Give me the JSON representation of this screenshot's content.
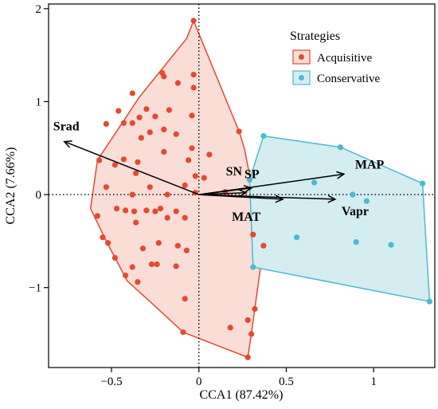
{
  "chart_data": {
    "type": "scatter",
    "xlabel": "CCA1 (87.42%)",
    "ylabel": "CCA2 (7.66%)",
    "xlim": [
      -0.86,
      1.35
    ],
    "ylim": [
      -1.86,
      2.05
    ],
    "x_ticks": [
      -0.5,
      0,
      0.5,
      1
    ],
    "x_tick_labels": [
      "−0.5",
      "0",
      "0.5",
      "1"
    ],
    "y_ticks": [
      -1,
      0,
      1,
      2
    ],
    "y_tick_labels": [
      "−1",
      "0",
      "1",
      "2"
    ],
    "grid": false,
    "reference_lines": {
      "x": 0,
      "y": 0,
      "style": "dotted"
    },
    "legend": {
      "title": "Strategies",
      "position": "top-right",
      "entries": [
        {
          "name": "Acquisitive",
          "color": "#e24a33"
        },
        {
          "name": "Conservative",
          "color": "#4fb8d2"
        }
      ]
    },
    "series": [
      {
        "name": "Acquisitive",
        "color": "#e24a33",
        "fill": "#f9ddd6",
        "hull": [
          [
            -0.03,
            1.87
          ],
          [
            0.23,
            0.68
          ],
          [
            0.26,
            0.5
          ],
          [
            0.37,
            -0.55
          ],
          [
            0.3,
            -1.5
          ],
          [
            0.28,
            -1.75
          ],
          [
            -0.09,
            -1.48
          ],
          [
            -0.28,
            -1.15
          ],
          [
            -0.41,
            -0.93
          ],
          [
            -0.53,
            -0.5
          ],
          [
            -0.62,
            -0.15
          ],
          [
            -0.58,
            0.37
          ],
          [
            -0.34,
            1.05
          ],
          [
            -0.07,
            1.68
          ]
        ],
        "points": [
          [
            -0.03,
            1.87
          ],
          [
            -0.21,
            1.31
          ],
          [
            -0.2,
            1.27
          ],
          [
            -0.12,
            1.2
          ],
          [
            -0.03,
            1.29
          ],
          [
            -0.03,
            1.15
          ],
          [
            -0.38,
            1.09
          ],
          [
            -0.3,
            0.92
          ],
          [
            -0.17,
            0.91
          ],
          [
            -0.46,
            0.9
          ],
          [
            -0.34,
            0.83
          ],
          [
            -0.25,
            0.84
          ],
          [
            -0.04,
            0.85
          ],
          [
            -0.38,
            0.77
          ],
          [
            -0.43,
            0.77
          ],
          [
            -0.53,
            0.76
          ],
          [
            -0.2,
            0.7
          ],
          [
            -0.28,
            0.67
          ],
          [
            -0.13,
            0.65
          ],
          [
            -0.33,
            0.61
          ],
          [
            -0.04,
            0.5
          ],
          [
            -0.06,
            0.37
          ],
          [
            -0.43,
            0.38
          ],
          [
            -0.57,
            0.37
          ],
          [
            -0.35,
            0.35
          ],
          [
            0.06,
            0.43
          ],
          [
            -0.2,
            0.46
          ],
          [
            0.23,
            0.68
          ],
          [
            -0.48,
            0.32
          ],
          [
            -0.36,
            0.23
          ],
          [
            -0.02,
            0.2
          ],
          [
            0.03,
            0.18
          ],
          [
            -0.08,
            0.1
          ],
          [
            -0.53,
            0.08
          ],
          [
            -0.28,
            0.08
          ],
          [
            -0.38,
            0.0
          ],
          [
            -0.18,
            0.0
          ],
          [
            -0.47,
            -0.15
          ],
          [
            -0.58,
            -0.23
          ],
          [
            -0.37,
            -0.18
          ],
          [
            -0.42,
            -0.17
          ],
          [
            -0.25,
            -0.18
          ],
          [
            -0.22,
            -0.15
          ],
          [
            -0.13,
            -0.18
          ],
          [
            -0.3,
            -0.17
          ],
          [
            -0.18,
            -0.25
          ],
          [
            -0.08,
            -0.25
          ],
          [
            -0.36,
            -0.3
          ],
          [
            -0.55,
            -0.46
          ],
          [
            -0.52,
            -0.52
          ],
          [
            -0.23,
            -0.52
          ],
          [
            -0.32,
            -0.58
          ],
          [
            -0.48,
            -0.68
          ],
          [
            -0.12,
            -0.55
          ],
          [
            -0.07,
            -0.6
          ],
          [
            -0.27,
            -0.75
          ],
          [
            -0.38,
            -0.78
          ],
          [
            -0.42,
            -0.87
          ],
          [
            -0.13,
            -0.77
          ],
          [
            -0.24,
            -0.75
          ],
          [
            -0.35,
            -0.94
          ],
          [
            -0.08,
            -1.12
          ],
          [
            0.31,
            -0.43
          ],
          [
            0.37,
            -0.55
          ],
          [
            0.32,
            -1.23
          ],
          [
            0.18,
            -1.43
          ],
          [
            0.28,
            -1.35
          ],
          [
            0.3,
            -1.5
          ],
          [
            -0.09,
            -1.48
          ],
          [
            0.28,
            -1.75
          ],
          [
            0.15,
            0.03
          ],
          [
            -0.02,
            0.02
          ]
        ]
      },
      {
        "name": "Conservative",
        "color": "#4fb8d2",
        "fill": "#d3edf1",
        "hull": [
          [
            0.37,
            0.63
          ],
          [
            0.81,
            0.51
          ],
          [
            1.28,
            0.12
          ],
          [
            1.32,
            -1.15
          ],
          [
            0.31,
            -0.78
          ],
          [
            0.29,
            0.16
          ]
        ],
        "points": [
          [
            0.37,
            0.63
          ],
          [
            0.81,
            0.51
          ],
          [
            1.28,
            0.12
          ],
          [
            0.66,
            0.13
          ],
          [
            0.29,
            0.16
          ],
          [
            0.88,
            0.0
          ],
          [
            0.96,
            -0.07
          ],
          [
            0.56,
            -0.46
          ],
          [
            0.9,
            -0.51
          ],
          [
            1.1,
            -0.54
          ],
          [
            0.31,
            -0.78
          ],
          [
            1.32,
            -1.15
          ]
        ]
      }
    ],
    "arrows": [
      {
        "label": "Srad",
        "x": -0.77,
        "y": 0.57
      },
      {
        "label": "SN",
        "x": 0.3,
        "y": 0.07
      },
      {
        "label": "SP",
        "x": 0.27,
        "y": 0.02
      },
      {
        "label": "MAP",
        "x": 0.83,
        "y": 0.22
      },
      {
        "label": "MAT",
        "x": 0.48,
        "y": -0.05
      },
      {
        "label": "Vapr",
        "x": 0.78,
        "y": -0.05
      }
    ]
  }
}
